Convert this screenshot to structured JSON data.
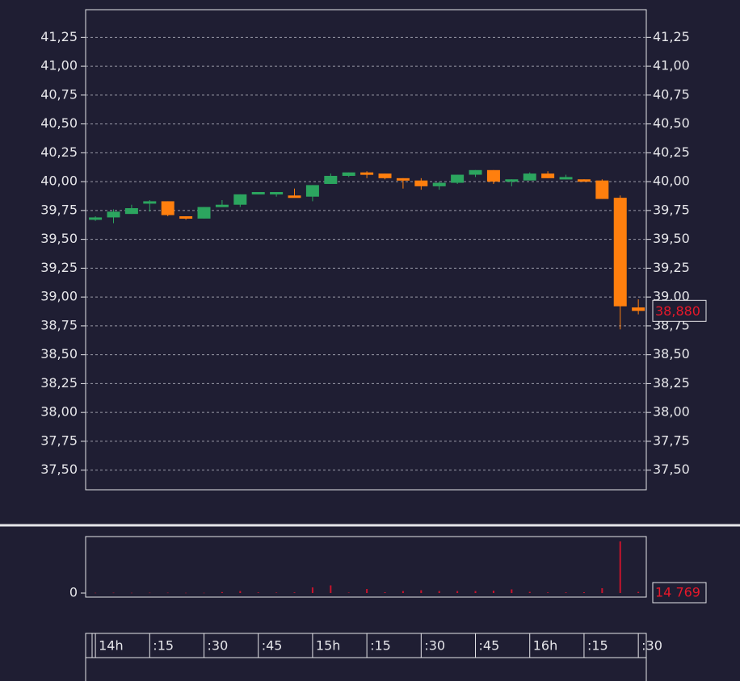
{
  "chart_data": [
    {
      "type": "candlestick",
      "x": [
        0,
        5,
        10,
        15,
        20,
        25,
        30,
        35,
        40,
        45,
        50,
        55,
        60,
        65,
        70,
        75,
        80,
        85,
        90,
        95,
        100,
        105,
        110,
        115,
        120,
        125,
        130,
        135,
        140,
        145,
        150
      ],
      "open": [
        39.67,
        39.69,
        39.72,
        39.82,
        39.83,
        39.7,
        39.68,
        39.78,
        39.8,
        39.9,
        39.9,
        39.88,
        39.87,
        39.98,
        40.05,
        40.08,
        40.07,
        40.03,
        40.01,
        39.96,
        39.99,
        40.06,
        40.1,
        40.01,
        40.01,
        40.07,
        40.03,
        40.02,
        40.01,
        39.86,
        38.91
      ],
      "high": [
        39.7,
        39.76,
        39.8,
        39.84,
        39.83,
        39.7,
        39.78,
        39.84,
        39.89,
        39.91,
        39.91,
        39.94,
        39.97,
        40.07,
        40.08,
        40.09,
        40.07,
        40.03,
        40.03,
        40.0,
        40.06,
        40.1,
        40.1,
        40.02,
        40.08,
        40.09,
        40.06,
        40.02,
        40.02,
        39.88,
        38.98
      ],
      "low": [
        39.66,
        39.64,
        39.72,
        39.74,
        39.7,
        39.67,
        39.68,
        39.78,
        39.78,
        39.89,
        39.87,
        39.87,
        39.83,
        39.98,
        40.04,
        40.03,
        40.02,
        39.94,
        39.93,
        39.93,
        39.98,
        40.04,
        39.98,
        39.96,
        40.01,
        40.03,
        40.02,
        40.0,
        39.85,
        38.72,
        38.85
      ],
      "close": [
        39.69,
        39.74,
        39.77,
        39.83,
        39.71,
        39.68,
        39.78,
        39.8,
        39.89,
        39.91,
        39.91,
        39.87,
        39.97,
        40.05,
        40.08,
        40.06,
        40.03,
        40.01,
        39.96,
        39.99,
        40.06,
        40.1,
        40.0,
        40.02,
        40.07,
        40.03,
        40.04,
        40.0,
        39.85,
        38.92,
        38.88
      ],
      "up_color": "#2ca55f",
      "down_color": "#ff7f0e",
      "xlim": [
        -2.7,
        152.2
      ],
      "xticks": [
        {
          "value": 0,
          "label": "14h"
        },
        {
          "value": 15,
          "label": ":15"
        },
        {
          "value": 30,
          "label": ":30"
        },
        {
          "value": 45,
          "label": ":45"
        },
        {
          "value": 60,
          "label": "15h"
        },
        {
          "value": 75,
          "label": ":15"
        },
        {
          "value": 90,
          "label": ":30"
        },
        {
          "value": 105,
          "label": ":45"
        },
        {
          "value": 120,
          "label": "16h"
        },
        {
          "value": 135,
          "label": ":15"
        },
        {
          "value": 150,
          "label": ":30"
        }
      ],
      "ylim": [
        37.33,
        41.49
      ],
      "yticks": [
        {
          "value": 37.5,
          "label": "37,50"
        },
        {
          "value": 37.75,
          "label": "37,75"
        },
        {
          "value": 38,
          "label": "38,00"
        },
        {
          "value": 38.25,
          "label": "38,25"
        },
        {
          "value": 38.5,
          "label": "38,50"
        },
        {
          "value": 38.75,
          "label": "38,75"
        },
        {
          "value": 39,
          "label": "39,00"
        },
        {
          "value": 39.25,
          "label": "39,25"
        },
        {
          "value": 39.5,
          "label": "39,50"
        },
        {
          "value": 39.75,
          "label": "39,75"
        },
        {
          "value": 40,
          "label": "40,00"
        },
        {
          "value": 40.25,
          "label": "40,25"
        },
        {
          "value": 40.5,
          "label": "40,50"
        },
        {
          "value": 40.75,
          "label": "40,75"
        },
        {
          "value": 41,
          "label": "41,00"
        },
        {
          "value": 41.25,
          "label": "41,25"
        }
      ],
      "grid": true,
      "last_price": {
        "value": 38.88,
        "label": "38,880"
      }
    },
    {
      "type": "bar",
      "x": [
        0,
        5,
        10,
        15,
        20,
        25,
        30,
        35,
        40,
        45,
        50,
        55,
        60,
        65,
        70,
        75,
        80,
        85,
        90,
        95,
        100,
        105,
        110,
        115,
        120,
        125,
        130,
        135,
        140,
        145,
        150
      ],
      "values": [
        3000,
        4000,
        3000,
        4000,
        4000,
        3000,
        3000,
        12000,
        25000,
        8000,
        6000,
        8000,
        70000,
        95000,
        6000,
        50000,
        10000,
        25000,
        35000,
        25000,
        25000,
        25000,
        30000,
        45000,
        15000,
        8000,
        8000,
        10000,
        60000,
        640000,
        14769
      ],
      "color": "#c8142c",
      "xlim": [
        -2.7,
        152.2
      ],
      "ylim": [
        0,
        700000
      ],
      "yticks": [
        0
      ],
      "last_value": {
        "value": 14769,
        "label": "14 769"
      }
    }
  ]
}
